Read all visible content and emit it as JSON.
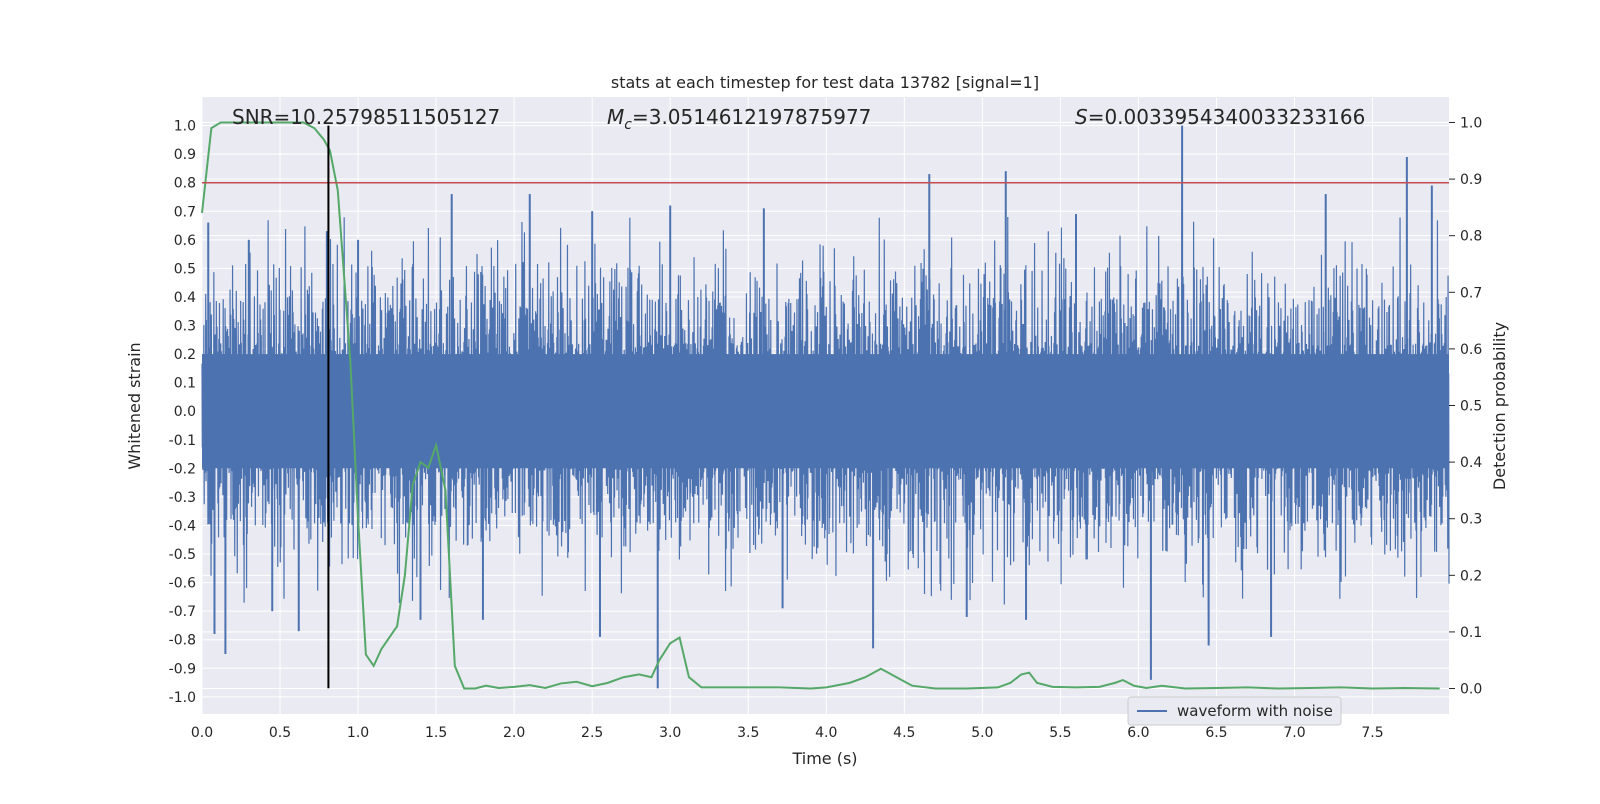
{
  "chart_data": {
    "type": "line",
    "title": "stats at each timestep for test data 13782 [signal=1]",
    "xlabel": "Time (s)",
    "ylabel_left": "Whitened strain",
    "ylabel_right": "Detection probability",
    "xlim": [
      0.0,
      7.99
    ],
    "ylim_left": [
      -1.06,
      1.1
    ],
    "ylim_right": [
      -0.045,
      1.045
    ],
    "x_ticks": [
      "0.0",
      "0.5",
      "1.0",
      "1.5",
      "2.0",
      "2.5",
      "3.0",
      "3.5",
      "4.0",
      "4.5",
      "5.0",
      "5.5",
      "6.0",
      "6.5",
      "7.0",
      "7.5"
    ],
    "y_left_ticks": [
      "1.0",
      "0.9",
      "0.8",
      "0.7",
      "0.6",
      "0.5",
      "0.4",
      "0.3",
      "0.2",
      "0.1",
      "0.0",
      "-0.1",
      "-0.2",
      "-0.3",
      "-0.4",
      "-0.5",
      "-0.6",
      "-0.7",
      "-0.8",
      "-0.9",
      "-1.0"
    ],
    "y_right_ticks": [
      "1.0",
      "0.9",
      "0.8",
      "0.7",
      "0.6",
      "0.5",
      "0.4",
      "0.3",
      "0.2",
      "0.1",
      "0.0"
    ],
    "grid": true,
    "annotations": {
      "snr": "SNR=10.25798511505127",
      "mc_symbol": "M",
      "mc_subscript": "c",
      "mc_value": "=3.0514612197875977",
      "s_symbol": "S",
      "s_value": "=0.0033954340033233166"
    },
    "threshold_line": {
      "axis": "left",
      "y": 0.8,
      "color": "#c44e52"
    },
    "merger_line": {
      "x": 0.81,
      "ymin": -0.97,
      "ymax": 1.0,
      "color": "#000000"
    },
    "legend": {
      "location": "lower-right",
      "entries": [
        "waveform with noise"
      ]
    },
    "colors": {
      "waveform": "#4c72b0",
      "probability": "#55a868",
      "plot_bg": "#eaeaf2",
      "grid": "#ffffff"
    },
    "series": [
      {
        "name": "waveform with noise",
        "axis": "left",
        "style": "dense-noise",
        "x_range": [
          0.0,
          7.99
        ],
        "body_envelope": [
          -0.2,
          0.2
        ],
        "spike_peaks": [
          {
            "x": 0.04,
            "y": 0.66
          },
          {
            "x": 0.08,
            "y": -0.78
          },
          {
            "x": 0.15,
            "y": -0.85
          },
          {
            "x": 0.3,
            "y": 0.6
          },
          {
            "x": 0.45,
            "y": -0.7
          },
          {
            "x": 0.62,
            "y": -0.77
          },
          {
            "x": 0.8,
            "y": 0.63
          },
          {
            "x": 1.0,
            "y": 0.6
          },
          {
            "x": 1.4,
            "y": -0.73
          },
          {
            "x": 1.6,
            "y": 0.76
          },
          {
            "x": 1.8,
            "y": -0.73
          },
          {
            "x": 2.1,
            "y": 0.76
          },
          {
            "x": 2.5,
            "y": 0.7
          },
          {
            "x": 2.55,
            "y": -0.79
          },
          {
            "x": 2.92,
            "y": -0.97
          },
          {
            "x": 3.0,
            "y": 0.72
          },
          {
            "x": 3.6,
            "y": 0.71
          },
          {
            "x": 3.72,
            "y": -0.69
          },
          {
            "x": 4.3,
            "y": -0.83
          },
          {
            "x": 4.66,
            "y": 0.83
          },
          {
            "x": 4.9,
            "y": -0.72
          },
          {
            "x": 5.15,
            "y": 0.84
          },
          {
            "x": 5.28,
            "y": -0.73
          },
          {
            "x": 5.6,
            "y": 0.69
          },
          {
            "x": 6.08,
            "y": -0.94
          },
          {
            "x": 6.28,
            "y": 1.0
          },
          {
            "x": 6.45,
            "y": -0.82
          },
          {
            "x": 6.85,
            "y": -0.79
          },
          {
            "x": 7.2,
            "y": 0.76
          },
          {
            "x": 7.72,
            "y": 0.89
          },
          {
            "x": 7.88,
            "y": 0.79
          }
        ]
      },
      {
        "name": "detection probability",
        "axis": "right",
        "x": [
          0.0,
          0.06,
          0.12,
          0.2,
          0.3,
          0.4,
          0.5,
          0.6,
          0.65,
          0.72,
          0.78,
          0.82,
          0.87,
          0.95,
          1.0,
          1.05,
          1.1,
          1.15,
          1.25,
          1.3,
          1.35,
          1.4,
          1.45,
          1.5,
          1.56,
          1.62,
          1.68,
          1.75,
          1.82,
          1.9,
          2.0,
          2.1,
          2.2,
          2.3,
          2.4,
          2.5,
          2.6,
          2.7,
          2.8,
          2.88,
          2.93,
          3.0,
          3.06,
          3.12,
          3.2,
          3.3,
          3.5,
          3.7,
          3.9,
          4.0,
          4.15,
          4.25,
          4.35,
          4.45,
          4.55,
          4.7,
          4.9,
          5.1,
          5.18,
          5.25,
          5.3,
          5.35,
          5.45,
          5.6,
          5.75,
          5.85,
          5.9,
          5.97,
          6.05,
          6.15,
          6.3,
          6.5,
          6.7,
          6.9,
          7.1,
          7.3,
          7.5,
          7.7,
          7.93
        ],
        "y": [
          0.84,
          0.99,
          1.0,
          1.0,
          1.0,
          1.0,
          1.0,
          1.0,
          1.0,
          0.99,
          0.97,
          0.95,
          0.88,
          0.58,
          0.3,
          0.06,
          0.04,
          0.07,
          0.11,
          0.2,
          0.36,
          0.4,
          0.39,
          0.43,
          0.35,
          0.04,
          0.0,
          0.0,
          0.005,
          0.001,
          0.003,
          0.006,
          0.001,
          0.009,
          0.012,
          0.004,
          0.01,
          0.02,
          0.025,
          0.02,
          0.05,
          0.08,
          0.09,
          0.02,
          0.002,
          0.002,
          0.002,
          0.002,
          0.0,
          0.002,
          0.01,
          0.02,
          0.035,
          0.02,
          0.005,
          0.0,
          0.0,
          0.002,
          0.01,
          0.025,
          0.028,
          0.01,
          0.003,
          0.002,
          0.003,
          0.01,
          0.015,
          0.005,
          0.001,
          0.005,
          0.0,
          0.001,
          0.002,
          0.0,
          0.001,
          0.002,
          0.0,
          0.001,
          0.0
        ]
      }
    ]
  }
}
